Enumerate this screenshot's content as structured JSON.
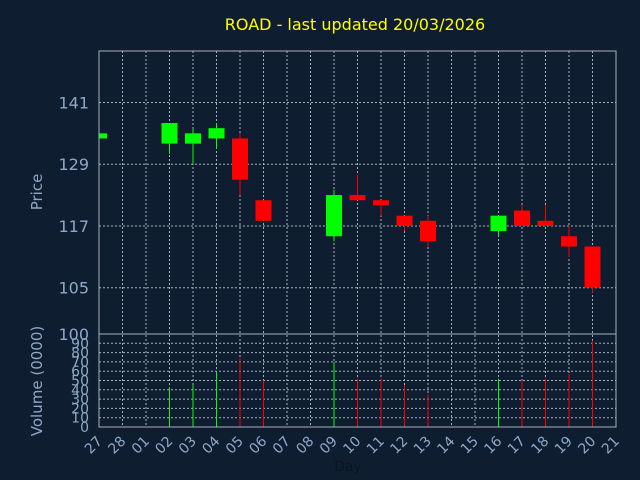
{
  "chart_data": {
    "type": "candlestick",
    "title": "ROAD - last updated 20/03/2026",
    "xlabel": "Day",
    "price_panel": {
      "ylabel": "Price",
      "ylim": [
        96,
        151
      ],
      "yticks": [
        105,
        117,
        129,
        141
      ]
    },
    "volume_panel": {
      "ylabel": "Volume (0000)",
      "ylim": [
        0,
        100
      ],
      "yticks": [
        0,
        10,
        20,
        30,
        40,
        50,
        60,
        70,
        80,
        90,
        100
      ]
    },
    "categories": [
      "27",
      "28",
      "01",
      "02",
      "03",
      "04",
      "05",
      "06",
      "07",
      "08",
      "09",
      "10",
      "11",
      "12",
      "13",
      "14",
      "15",
      "16",
      "17",
      "18",
      "19",
      "20",
      "21"
    ],
    "up_color": "#00ff00",
    "down_color": "#ff0000",
    "candles": [
      {
        "x": "27",
        "open": 134,
        "high": 135,
        "low": 133,
        "close": 135,
        "volume": 0
      },
      {
        "x": "02",
        "open": 133,
        "high": 137,
        "low": 131,
        "close": 137,
        "volume": 43
      },
      {
        "x": "03",
        "open": 133,
        "high": 136,
        "low": 129,
        "close": 135,
        "volume": 45
      },
      {
        "x": "04",
        "open": 134,
        "high": 137,
        "low": 132,
        "close": 136,
        "volume": 60
      },
      {
        "x": "05",
        "open": 134,
        "high": 135,
        "low": 123,
        "close": 126,
        "volume": 74
      },
      {
        "x": "06",
        "open": 122,
        "high": 122,
        "low": 118,
        "close": 118,
        "volume": 50
      },
      {
        "x": "09",
        "open": 115,
        "high": 124,
        "low": 114,
        "close": 123,
        "volume": 70
      },
      {
        "x": "10",
        "open": 123,
        "high": 127,
        "low": 122,
        "close": 122,
        "volume": 52
      },
      {
        "x": "11",
        "open": 122,
        "high": 122,
        "low": 119,
        "close": 121,
        "volume": 52
      },
      {
        "x": "12",
        "open": 119,
        "high": 119,
        "low": 116,
        "close": 117,
        "volume": 45
      },
      {
        "x": "13",
        "open": 118,
        "high": 119,
        "low": 113,
        "close": 114,
        "volume": 35
      },
      {
        "x": "16",
        "open": 116,
        "high": 119,
        "low": 115,
        "close": 119,
        "volume": 52
      },
      {
        "x": "17",
        "open": 120,
        "high": 121,
        "low": 117,
        "close": 117,
        "volume": 50
      },
      {
        "x": "18",
        "open": 118,
        "high": 121,
        "low": 117,
        "close": 117,
        "volume": 52
      },
      {
        "x": "19",
        "open": 115,
        "high": 117,
        "low": 111,
        "close": 113,
        "volume": 57
      },
      {
        "x": "20",
        "open": 113,
        "high": 113,
        "low": 104,
        "close": 105,
        "volume": 93
      }
    ]
  }
}
